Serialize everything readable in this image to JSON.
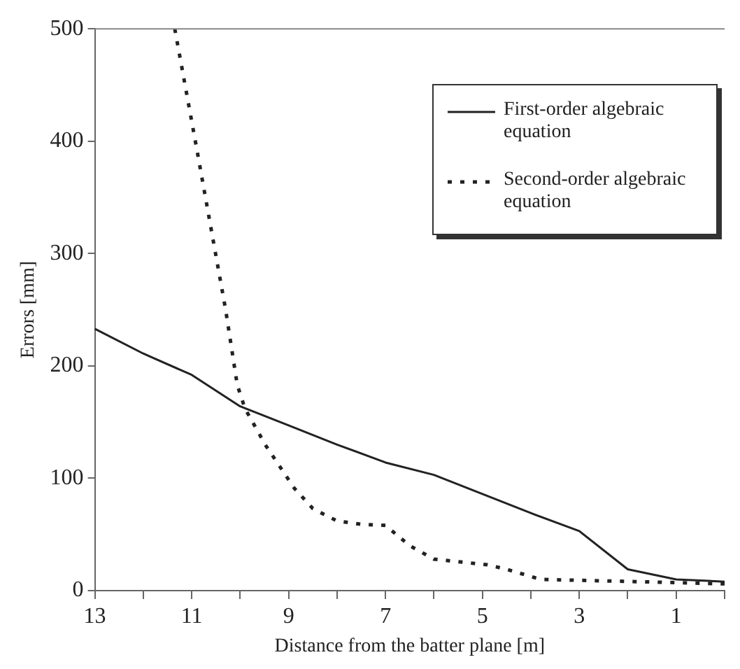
{
  "chart_data": {
    "type": "line",
    "xlabel": "Distance from the batter plane [m]",
    "ylabel": "Errors [mm]",
    "xlim": [
      13,
      0
    ],
    "ylim": [
      0,
      500
    ],
    "xticks": [
      13,
      {
        "value": 12,
        "label": null
      },
      11,
      {
        "value": 10,
        "label": null
      },
      9,
      {
        "value": 8,
        "label": null
      },
      7,
      {
        "value": 6,
        "label": null
      },
      5,
      {
        "value": 4,
        "label": null
      },
      3,
      {
        "value": 2,
        "label": null
      },
      1,
      {
        "value": 0,
        "label": null
      }
    ],
    "yticks": [
      0,
      100,
      200,
      300,
      400,
      500
    ],
    "grid": false,
    "legend": "top right",
    "marker": "none",
    "series": [
      {
        "name": "First-order algebraic equation",
        "color": "#222222",
        "line_style": "solid",
        "x": [
          13,
          12,
          11,
          10,
          9,
          8,
          7,
          6,
          5,
          4,
          3,
          2,
          1,
          0
        ],
        "values": [
          233,
          211,
          192,
          164,
          147,
          130,
          114,
          103,
          86,
          69,
          53,
          19,
          10,
          8
        ]
      },
      {
        "name": "Second-order algebraic equation",
        "color": "#222222",
        "line_style": "dotted",
        "x": [
          11.35,
          10.9,
          10.6,
          10.3,
          10.06,
          9.9,
          9.47,
          8.88,
          8.5,
          8.0,
          7.5,
          7.0,
          6.5,
          6.0,
          4.9,
          4.5,
          3.8,
          2.8,
          1.8,
          0
        ],
        "values": [
          500,
          394,
          322,
          250,
          183,
          162,
          129,
          91,
          73,
          62,
          59,
          58,
          40,
          28,
          23,
          19,
          10,
          9,
          8,
          6
        ]
      }
    ]
  }
}
